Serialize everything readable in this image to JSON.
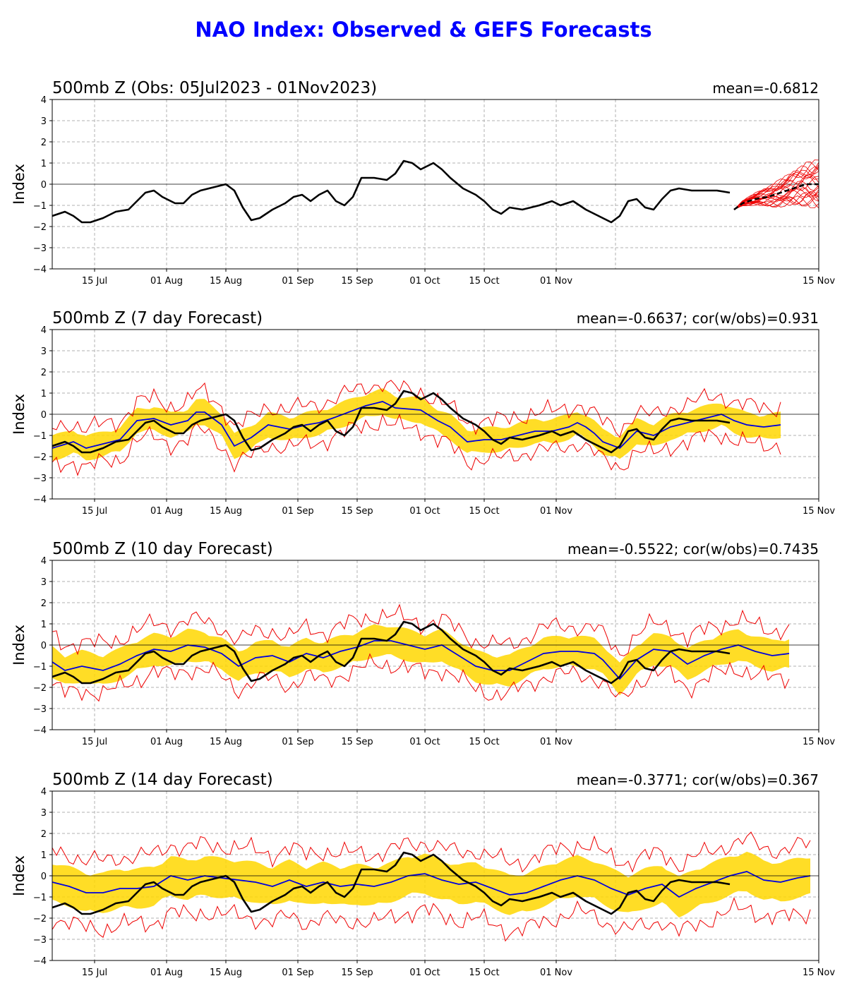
{
  "page_title": "NAO Index: Observed & GEFS Forecasts",
  "colors": {
    "title": "#0000ff",
    "observed": "#000000",
    "ensemble_mean": "#0000dd",
    "spread_band": "#ffd700",
    "extremes": "#ee0000",
    "grid": "#b0b0b0"
  },
  "chart_data": [
    {
      "type": "line",
      "title": "500mb Z (Obs: 05Jul2023 - 01Nov2023)",
      "stats": "mean=-0.6812",
      "xlabel": "",
      "ylabel": "Index",
      "ylim": [
        -4,
        4
      ],
      "yticks": [
        "4",
        "3",
        "2",
        "1",
        "0",
        "−1",
        "−2",
        "−3",
        "−4"
      ],
      "xticks": [
        "15 Jul",
        "01 Aug",
        "15 Aug",
        "01 Sep",
        "15 Sep",
        "01 Oct",
        "15 Oct",
        "01 Nov",
        "15 Nov"
      ],
      "has_band": false,
      "has_ensemble": true
    },
    {
      "type": "line",
      "title": "500mb Z (7 day Forecast)",
      "stats": "mean=-0.6637; cor(w/obs)=0.931",
      "xlabel": "",
      "ylabel": "Index",
      "ylim": [
        -4,
        4
      ],
      "yticks": [
        "4",
        "3",
        "2",
        "1",
        "0",
        "−1",
        "−2",
        "−3",
        "−4"
      ],
      "xticks": [
        "15 Jul",
        "01 Aug",
        "15 Aug",
        "01 Sep",
        "15 Sep",
        "01 Oct",
        "15 Oct",
        "01 Nov",
        "15 Nov"
      ],
      "has_band": true,
      "has_ensemble": false,
      "forecast_mean_knots": [
        [
          0,
          -1.6
        ],
        [
          5,
          -1.3
        ],
        [
          8,
          -1.6
        ],
        [
          12,
          -1.4
        ],
        [
          16,
          -1.2
        ],
        [
          20,
          -0.3
        ],
        [
          24,
          -0.2
        ],
        [
          28,
          -0.5
        ],
        [
          32,
          -0.3
        ],
        [
          34,
          0.1
        ],
        [
          36,
          0.1
        ],
        [
          38,
          -0.2
        ],
        [
          40,
          -0.5
        ],
        [
          43,
          -1.5
        ],
        [
          47,
          -1.1
        ],
        [
          51,
          -0.5
        ],
        [
          56,
          -0.7
        ],
        [
          60,
          -0.5
        ],
        [
          63,
          -0.4
        ],
        [
          66,
          -0.2
        ],
        [
          70,
          0.1
        ],
        [
          74,
          0.4
        ],
        [
          78,
          0.6
        ],
        [
          81,
          0.3
        ],
        [
          87,
          0.2
        ],
        [
          91,
          -0.3
        ],
        [
          94,
          -0.6
        ],
        [
          98,
          -1.3
        ],
        [
          102,
          -1.2
        ],
        [
          106,
          -1.2
        ],
        [
          110,
          -1.0
        ],
        [
          114,
          -0.8
        ],
        [
          118,
          -0.8
        ],
        [
          122,
          -0.6
        ],
        [
          124,
          -0.4
        ],
        [
          126,
          -0.6
        ],
        [
          128,
          -0.9
        ],
        [
          130,
          -1.3
        ],
        [
          134,
          -1.6
        ],
        [
          138,
          -0.8
        ],
        [
          142,
          -1.0
        ],
        [
          146,
          -0.6
        ],
        [
          150,
          -0.4
        ],
        [
          154,
          -0.2
        ],
        [
          158,
          0.0
        ],
        [
          161,
          -0.3
        ],
        [
          164,
          -0.5
        ],
        [
          168,
          -0.6
        ],
        [
          172,
          -0.5
        ]
      ],
      "band_halfwidth": 0.45,
      "upper_offset": 0.9,
      "lower_offset": 0.9
    },
    {
      "type": "line",
      "title": "500mb Z (10 day Forecast)",
      "stats": "mean=-0.5522; cor(w/obs)=0.7435",
      "xlabel": "",
      "ylabel": "Index",
      "ylim": [
        -4,
        4
      ],
      "yticks": [
        "4",
        "3",
        "2",
        "1",
        "0",
        "−1",
        "−2",
        "−3",
        "−4"
      ],
      "xticks": [
        "15 Jul",
        "01 Aug",
        "15 Aug",
        "01 Sep",
        "15 Sep",
        "01 Oct",
        "15 Oct",
        "01 Nov",
        "15 Nov"
      ],
      "has_band": true,
      "has_ensemble": false,
      "forecast_mean_knots": [
        [
          0,
          -0.8
        ],
        [
          3,
          -1.2
        ],
        [
          7,
          -1.0
        ],
        [
          12,
          -1.2
        ],
        [
          16,
          -0.9
        ],
        [
          20,
          -0.5
        ],
        [
          24,
          -0.2
        ],
        [
          28,
          -0.3
        ],
        [
          32,
          0.0
        ],
        [
          36,
          -0.1
        ],
        [
          40,
          -0.4
        ],
        [
          44,
          -1.0
        ],
        [
          48,
          -0.6
        ],
        [
          52,
          -0.5
        ],
        [
          56,
          -0.8
        ],
        [
          60,
          -0.4
        ],
        [
          64,
          -0.6
        ],
        [
          68,
          -0.3
        ],
        [
          72,
          -0.1
        ],
        [
          76,
          0.2
        ],
        [
          80,
          0.2
        ],
        [
          84,
          0.0
        ],
        [
          88,
          -0.2
        ],
        [
          92,
          0.0
        ],
        [
          96,
          -0.5
        ],
        [
          100,
          -1.0
        ],
        [
          104,
          -1.2
        ],
        [
          108,
          -1.2
        ],
        [
          112,
          -0.8
        ],
        [
          116,
          -0.4
        ],
        [
          120,
          -0.3
        ],
        [
          124,
          -0.3
        ],
        [
          128,
          -0.4
        ],
        [
          130,
          -0.7
        ],
        [
          134,
          -1.6
        ],
        [
          138,
          -0.7
        ],
        [
          142,
          -0.2
        ],
        [
          146,
          -0.3
        ],
        [
          150,
          -0.9
        ],
        [
          154,
          -0.5
        ],
        [
          158,
          -0.2
        ],
        [
          162,
          0.0
        ],
        [
          166,
          -0.3
        ],
        [
          170,
          -0.5
        ],
        [
          174,
          -0.4
        ]
      ],
      "band_halfwidth": 0.6,
      "upper_offset": 1.2,
      "lower_offset": 1.1
    },
    {
      "type": "line",
      "title": "500mb Z (14 day Forecast)",
      "stats": "mean=-0.3771; cor(w/obs)=0.367",
      "xlabel": "",
      "ylabel": "Index",
      "ylim": [
        -4,
        4
      ],
      "yticks": [
        "4",
        "3",
        "2",
        "1",
        "0",
        "−1",
        "−2",
        "−3",
        "−4"
      ],
      "xticks": [
        "15 Jul",
        "01 Aug",
        "15 Aug",
        "01 Sep",
        "15 Sep",
        "01 Oct",
        "15 Oct",
        "01 Nov",
        "15 Nov"
      ],
      "has_band": true,
      "has_ensemble": false,
      "forecast_mean_knots": [
        [
          0,
          -0.3
        ],
        [
          4,
          -0.5
        ],
        [
          8,
          -0.8
        ],
        [
          12,
          -0.8
        ],
        [
          16,
          -0.6
        ],
        [
          20,
          -0.6
        ],
        [
          24,
          -0.5
        ],
        [
          28,
          0.0
        ],
        [
          32,
          -0.2
        ],
        [
          36,
          0.0
        ],
        [
          40,
          -0.1
        ],
        [
          44,
          -0.2
        ],
        [
          48,
          -0.3
        ],
        [
          52,
          -0.5
        ],
        [
          56,
          -0.2
        ],
        [
          60,
          -0.5
        ],
        [
          64,
          -0.3
        ],
        [
          68,
          -0.5
        ],
        [
          72,
          -0.4
        ],
        [
          76,
          -0.5
        ],
        [
          80,
          -0.3
        ],
        [
          84,
          0.0
        ],
        [
          88,
          0.1
        ],
        [
          92,
          -0.2
        ],
        [
          96,
          -0.4
        ],
        [
          100,
          -0.3
        ],
        [
          104,
          -0.6
        ],
        [
          108,
          -0.9
        ],
        [
          112,
          -0.8
        ],
        [
          116,
          -0.5
        ],
        [
          120,
          -0.2
        ],
        [
          124,
          0.0
        ],
        [
          128,
          -0.2
        ],
        [
          132,
          -0.6
        ],
        [
          136,
          -0.9
        ],
        [
          140,
          -0.6
        ],
        [
          144,
          -0.4
        ],
        [
          148,
          -1.0
        ],
        [
          152,
          -0.6
        ],
        [
          156,
          -0.3
        ],
        [
          160,
          0.0
        ],
        [
          164,
          0.2
        ],
        [
          168,
          -0.2
        ],
        [
          172,
          -0.3
        ],
        [
          176,
          -0.1
        ],
        [
          179,
          0.0
        ]
      ],
      "band_halfwidth": 0.8,
      "upper_offset": 1.5,
      "lower_offset": 1.7
    }
  ],
  "observed_knots": [
    [
      0,
      -1.5
    ],
    [
      3,
      -1.3
    ],
    [
      5,
      -1.5
    ],
    [
      7,
      -1.8
    ],
    [
      9,
      -1.8
    ],
    [
      12,
      -1.6
    ],
    [
      15,
      -1.3
    ],
    [
      18,
      -1.2
    ],
    [
      20,
      -0.8
    ],
    [
      22,
      -0.4
    ],
    [
      24,
      -0.3
    ],
    [
      26,
      -0.6
    ],
    [
      29,
      -0.9
    ],
    [
      31,
      -0.9
    ],
    [
      33,
      -0.5
    ],
    [
      35,
      -0.3
    ],
    [
      37,
      -0.2
    ],
    [
      39,
      -0.1
    ],
    [
      41,
      0.0
    ],
    [
      43,
      -0.3
    ],
    [
      45,
      -1.1
    ],
    [
      47,
      -1.7
    ],
    [
      49,
      -1.6
    ],
    [
      52,
      -1.2
    ],
    [
      55,
      -0.9
    ],
    [
      57,
      -0.6
    ],
    [
      59,
      -0.5
    ],
    [
      61,
      -0.8
    ],
    [
      63,
      -0.5
    ],
    [
      65,
      -0.3
    ],
    [
      67,
      -0.8
    ],
    [
      69,
      -1.0
    ],
    [
      71,
      -0.6
    ],
    [
      73,
      0.3
    ],
    [
      76,
      0.3
    ],
    [
      79,
      0.2
    ],
    [
      81,
      0.5
    ],
    [
      83,
      1.1
    ],
    [
      85,
      1.0
    ],
    [
      87,
      0.7
    ],
    [
      90,
      1.0
    ],
    [
      92,
      0.7
    ],
    [
      94,
      0.3
    ],
    [
      97,
      -0.2
    ],
    [
      100,
      -0.5
    ],
    [
      102,
      -0.8
    ],
    [
      104,
      -1.2
    ],
    [
      106,
      -1.4
    ],
    [
      108,
      -1.1
    ],
    [
      111,
      -1.2
    ],
    [
      115,
      -1.0
    ],
    [
      118,
      -0.8
    ],
    [
      120,
      -1.0
    ],
    [
      123,
      -0.8
    ],
    [
      126,
      -1.2
    ],
    [
      129,
      -1.5
    ],
    [
      132,
      -1.8
    ],
    [
      134,
      -1.5
    ],
    [
      136,
      -0.8
    ],
    [
      138,
      -0.7
    ],
    [
      140,
      -1.1
    ],
    [
      142,
      -1.2
    ],
    [
      144,
      -0.7
    ],
    [
      146,
      -0.3
    ],
    [
      148,
      -0.2
    ],
    [
      151,
      -0.3
    ],
    [
      154,
      -0.3
    ],
    [
      157,
      -0.3
    ],
    [
      160,
      -0.4
    ]
  ],
  "ensemble_mean_forecast": [
    [
      161,
      -1.2
    ],
    [
      163,
      -0.9
    ],
    [
      166,
      -0.7
    ],
    [
      169,
      -0.6
    ],
    [
      172,
      -0.4
    ],
    [
      175,
      -0.2
    ],
    [
      178,
      0.0
    ],
    [
      181,
      0.0
    ]
  ]
}
